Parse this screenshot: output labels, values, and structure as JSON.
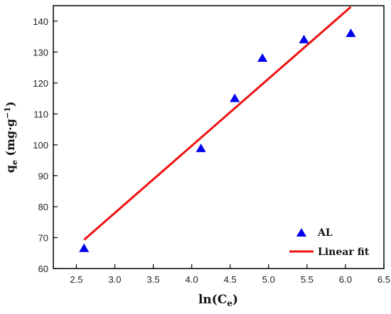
{
  "chart_data": {
    "type": "scatter",
    "title": "",
    "xlabel": "ln(C_e)",
    "ylabel": "q_e (mg·g⁻¹)",
    "xlabel_parts": {
      "main": "ln(C",
      "sub": "e",
      "end": ")"
    },
    "ylabel_parts": {
      "main": "q",
      "sub": "e",
      "rest": " (mg·g",
      "sup": "−1",
      "end": ")"
    },
    "xlim": [
      2.2,
      6.5
    ],
    "ylim": [
      60,
      145
    ],
    "xticks": [
      2.5,
      3.0,
      3.5,
      4.0,
      4.5,
      5.0,
      5.5,
      6.0,
      6.5
    ],
    "xtick_labels": [
      "2.5",
      "3.0",
      "3.5",
      "4.0",
      "4.5",
      "5.0",
      "5.5",
      "6.0",
      "6.5"
    ],
    "yticks": [
      60,
      70,
      80,
      90,
      100,
      110,
      120,
      130,
      140
    ],
    "ytick_labels": [
      "60",
      "70",
      "80",
      "90",
      "100",
      "110",
      "120",
      "130",
      "140"
    ],
    "grid": false,
    "legend_position": "bottom-right",
    "series": [
      {
        "name": "AL",
        "kind": "scatter",
        "marker": "triangle",
        "color": "#0000ee",
        "x": [
          2.6,
          4.12,
          4.56,
          4.92,
          5.46,
          6.07
        ],
        "y": [
          66.5,
          98.8,
          115.0,
          128.0,
          134.0,
          136.0
        ]
      },
      {
        "name": "Linear fit",
        "kind": "line",
        "color": "#ee1111",
        "x": [
          2.6,
          6.07
        ],
        "y": [
          69.3,
          144.6
        ]
      }
    ]
  }
}
